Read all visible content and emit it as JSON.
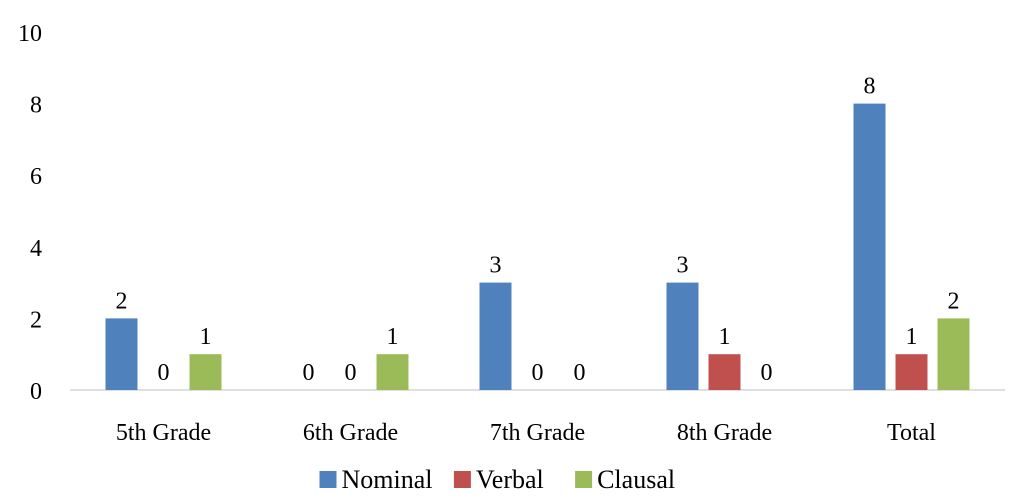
{
  "chart_data": {
    "type": "bar",
    "title": "",
    "xlabel": "",
    "ylabel": "",
    "categories": [
      "5th Grade",
      "6th Grade",
      "7th Grade",
      "8th Grade",
      "Total"
    ],
    "series": [
      {
        "name": "Nominal",
        "color": "#4F81BD",
        "values": [
          2,
          0,
          3,
          3,
          8
        ]
      },
      {
        "name": "Verbal",
        "color": "#C0504D",
        "values": [
          0,
          0,
          0,
          1,
          1
        ]
      },
      {
        "name": "Clausal",
        "color": "#9BBB59",
        "values": [
          1,
          1,
          0,
          0,
          2
        ]
      }
    ],
    "ylim": [
      0,
      10
    ],
    "yticks": [
      0,
      2,
      4,
      6,
      8,
      10
    ],
    "grid": false,
    "data_labels": true,
    "legend": "bottom-center"
  }
}
